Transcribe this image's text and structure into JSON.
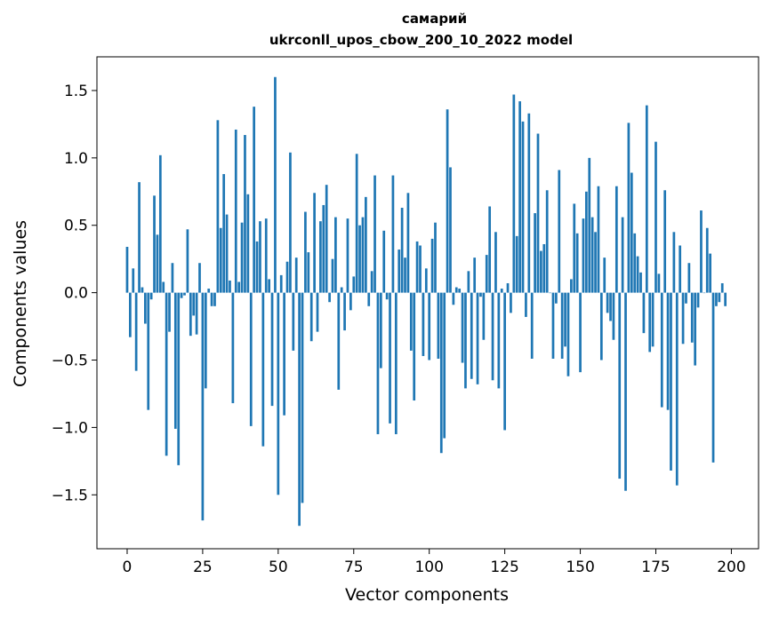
{
  "chart_data": {
    "type": "bar",
    "title_line1": "самарий",
    "title_line2": "ukrconll_upos_cbow_200_10_2022 model",
    "xlabel": "Vector components",
    "ylabel": "Components values",
    "xlim": [
      -10,
      209
    ],
    "ylim": [
      -1.9,
      1.75
    ],
    "xticks": [
      0,
      25,
      50,
      75,
      100,
      125,
      150,
      175,
      200
    ],
    "xtick_labels": [
      "0",
      "25",
      "50",
      "75",
      "100",
      "125",
      "150",
      "175",
      "200"
    ],
    "yticks": [
      1.5,
      1.0,
      0.5,
      0.0,
      -0.5,
      -1.0,
      -1.5
    ],
    "ytick_labels": [
      "1.5",
      "1.0",
      "0.5",
      "0.0",
      "−0.5",
      "−1.0",
      "−1.5"
    ],
    "bar_color": "#1f77b4",
    "values": [
      0.34,
      -0.33,
      0.18,
      -0.58,
      0.82,
      0.04,
      -0.23,
      -0.87,
      -0.05,
      0.72,
      0.43,
      1.02,
      0.08,
      -1.21,
      -0.29,
      0.22,
      -1.01,
      -1.28,
      -0.04,
      -0.02,
      0.47,
      -0.32,
      -0.17,
      -0.31,
      0.22,
      -1.69,
      -0.71,
      0.03,
      -0.1,
      -0.1,
      1.28,
      0.48,
      0.88,
      0.58,
      0.09,
      -0.82,
      1.21,
      0.08,
      0.52,
      1.17,
      0.73,
      -0.99,
      1.38,
      0.38,
      0.53,
      -1.14,
      0.55,
      0.1,
      -0.84,
      1.6,
      -1.5,
      0.13,
      -0.91,
      0.23,
      1.04,
      -0.43,
      0.26,
      -1.73,
      -1.56,
      0.6,
      0.3,
      -0.36,
      0.74,
      -0.29,
      0.53,
      0.65,
      0.8,
      -0.07,
      0.25,
      0.56,
      -0.72,
      0.04,
      -0.28,
      0.55,
      -0.13,
      0.12,
      1.03,
      0.5,
      0.56,
      0.71,
      -0.1,
      0.16,
      0.87,
      -1.05,
      -0.56,
      0.46,
      -0.05,
      -0.97,
      0.87,
      -1.05,
      0.32,
      0.63,
      0.26,
      0.74,
      -0.43,
      -0.8,
      0.38,
      0.35,
      -0.47,
      0.18,
      -0.5,
      0.4,
      0.52,
      -0.49,
      -1.19,
      -1.08,
      1.36,
      0.93,
      -0.09,
      0.04,
      0.03,
      -0.52,
      -0.71,
      0.16,
      -0.64,
      0.26,
      -0.68,
      -0.03,
      -0.35,
      0.28,
      0.64,
      -0.65,
      0.45,
      -0.71,
      0.03,
      -1.02,
      0.07,
      -0.15,
      1.47,
      0.42,
      1.42,
      1.27,
      -0.18,
      1.33,
      -0.49,
      0.59,
      1.18,
      0.31,
      0.36,
      0.76,
      0.0,
      -0.49,
      -0.08,
      0.91,
      -0.49,
      -0.4,
      -0.62,
      0.1,
      0.66,
      0.44,
      -0.59,
      0.55,
      0.75,
      1.0,
      0.56,
      0.45,
      0.79,
      -0.5,
      0.26,
      -0.15,
      -0.21,
      -0.35,
      0.79,
      -1.38,
      0.56,
      -1.47,
      1.26,
      0.89,
      0.44,
      0.27,
      0.15,
      -0.3,
      1.39,
      -0.44,
      -0.4,
      1.12,
      0.14,
      -0.85,
      0.76,
      -0.87,
      -1.32,
      0.45,
      -1.43,
      0.35,
      -0.38,
      -0.08,
      0.22,
      -0.37,
      -0.54,
      -0.11,
      0.61,
      -0.0,
      0.48,
      0.29,
      -1.26,
      -0.1,
      -0.07,
      0.07,
      -0.1
    ]
  }
}
